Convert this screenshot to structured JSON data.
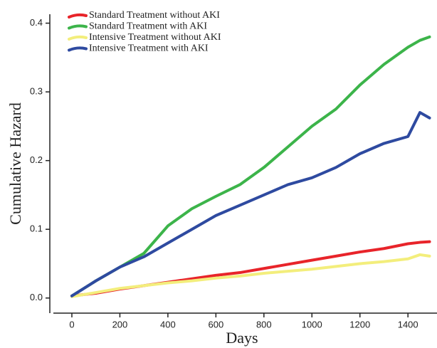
{
  "chart_data": {
    "type": "line",
    "xlabel": "Days",
    "ylabel": "Cumulative Hazard",
    "x": [
      0,
      100,
      200,
      300,
      400,
      500,
      600,
      700,
      800,
      900,
      1000,
      1100,
      1200,
      1300,
      1400,
      1450,
      1490
    ],
    "series": [
      {
        "name": "Standard Treatment without AKI",
        "color": "#e8242a",
        "values": [
          0.003,
          0.007,
          0.013,
          0.018,
          0.023,
          0.028,
          0.033,
          0.037,
          0.043,
          0.049,
          0.055,
          0.061,
          0.067,
          0.072,
          0.079,
          0.081,
          0.082
        ]
      },
      {
        "name": "Standard Treatment with AKI",
        "color": "#3cb44a",
        "values": [
          0.003,
          0.025,
          0.045,
          0.065,
          0.105,
          0.13,
          0.148,
          0.165,
          0.19,
          0.22,
          0.25,
          0.275,
          0.31,
          0.34,
          0.365,
          0.375,
          0.38
        ]
      },
      {
        "name": "Intensive Treatment without AKI",
        "color": "#f3ee7c",
        "values": [
          0.002,
          0.008,
          0.014,
          0.018,
          0.022,
          0.025,
          0.029,
          0.032,
          0.036,
          0.039,
          0.042,
          0.046,
          0.05,
          0.053,
          0.057,
          0.063,
          0.061
        ]
      },
      {
        "name": "Intensive Treatment with AKI",
        "color": "#2e4aa0",
        "values": [
          0.003,
          0.025,
          0.045,
          0.06,
          0.08,
          0.1,
          0.12,
          0.135,
          0.15,
          0.165,
          0.175,
          0.19,
          0.21,
          0.225,
          0.235,
          0.27,
          0.262
        ]
      }
    ],
    "xlim": [
      -77,
      1521
    ],
    "ylim": [
      -0.022,
      0.413
    ],
    "xticks": [
      0,
      200,
      400,
      600,
      800,
      1000,
      1200,
      1400
    ],
    "yticks": [
      {
        "value": 0,
        "label": "0.0"
      },
      0.1,
      0.2,
      0.3,
      0.4
    ],
    "legend": "upper-left"
  }
}
